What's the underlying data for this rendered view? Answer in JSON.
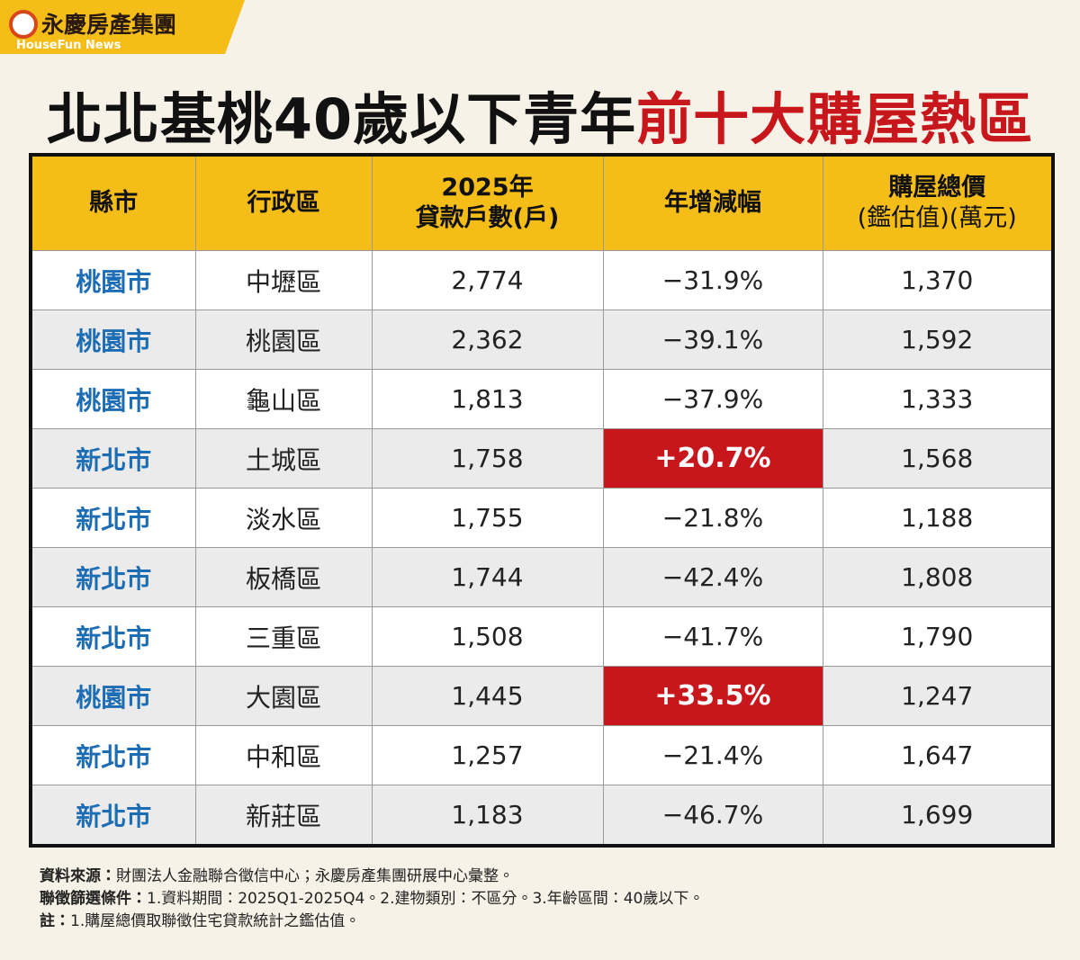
{
  "header": {
    "logo": "永慶房產集團",
    "logo_sub": "HouseFun News",
    "title": "北北基桃40歲以下青年",
    "title_highlight": "前十大購屋熱區"
  },
  "table": {
    "columns": [
      [
        "縣市"
      ],
      [
        "行政區"
      ],
      [
        "2025年",
        "貸款戶數(戶)"
      ],
      [
        "年增減幅"
      ],
      [
        "購屋總價",
        "(鑑估值)(萬元)"
      ]
    ],
    "rows": [
      [
        "桃園市",
        "中壢區",
        "2,774",
        "−31.9%",
        "1,370"
      ],
      [
        "桃園市",
        "桃園區",
        "2,362",
        "−39.1%",
        "1,592"
      ],
      [
        "桃園市",
        "龜山區",
        "1,813",
        "−37.9%",
        "1,333"
      ],
      [
        "新北市",
        "土城區",
        "1,758",
        "+20.7%",
        "1,568"
      ],
      [
        "新北市",
        "淡水區",
        "1,755",
        "−21.8%",
        "1,188"
      ],
      [
        "新北市",
        "板橋區",
        "1,744",
        "−42.4%",
        "1,808"
      ],
      [
        "新北市",
        "三重區",
        "1,508",
        "−41.7%",
        "1,790"
      ],
      [
        "桃園市",
        "大園區",
        "1,445",
        "+33.5%",
        "1,247"
      ],
      [
        "新北市",
        "中和區",
        "1,257",
        "−21.4%",
        "1,647"
      ],
      [
        "新北市",
        "新莊區",
        "1,183",
        "−46.7%",
        "1,699"
      ]
    ],
    "highlighted_cells": [
      {
        "row": 3,
        "col": 3
      },
      {
        "row": 7,
        "col": 3
      }
    ],
    "highlight_color": "#c8161d"
  },
  "notes": [
    {
      "label": "資料來源：",
      "text": "財團法人金融聯合徵信中心；永慶房產集團研展中心彙整。"
    },
    {
      "label": "聯徵篩選條件：",
      "text": "1.資料期間：2025Q1-2025Q4。2.建物類別：不區分。3.年齡區間：40歲以下。"
    },
    {
      "label": "註：",
      "text": "1.購屋總價取聯徵住宅貸款統計之鑑估值。"
    }
  ]
}
